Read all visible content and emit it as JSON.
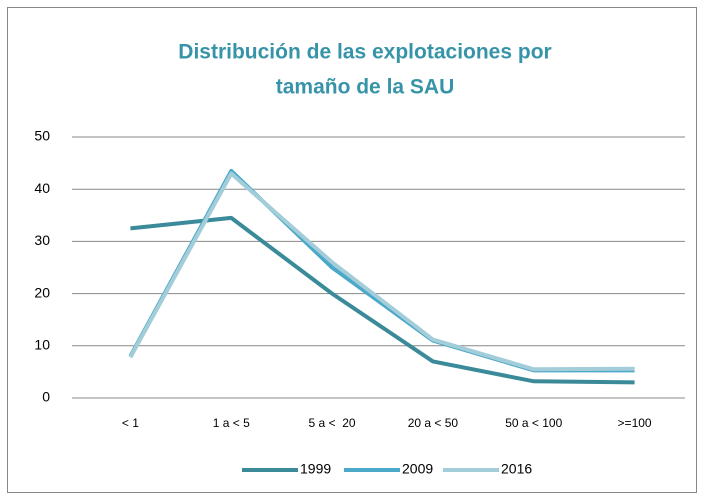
{
  "chart_data": {
    "type": "line",
    "title": "Distribución de las explotaciones por tamaño de la SAU",
    "categories": [
      "< 1",
      "1 a < 5",
      "5 a <  20",
      "20 a < 50",
      "50 a < 100",
      ">=100"
    ],
    "series": [
      {
        "name": "1999",
        "color": "#3a8a99",
        "values": [
          32.5,
          34.5,
          20,
          7,
          3.2,
          3
        ]
      },
      {
        "name": "2009",
        "color": "#4aa8c8",
        "values": [
          8,
          43.5,
          25,
          11,
          5.3,
          5.3
        ]
      },
      {
        "name": "2016",
        "color": "#a3cdd9",
        "values": [
          7.8,
          43,
          26,
          11.2,
          5.5,
          5.6
        ]
      }
    ],
    "ylim": [
      0,
      50
    ],
    "yticks": [
      0,
      10,
      20,
      30,
      40,
      50
    ],
    "grid": true,
    "legend": "bottom"
  }
}
